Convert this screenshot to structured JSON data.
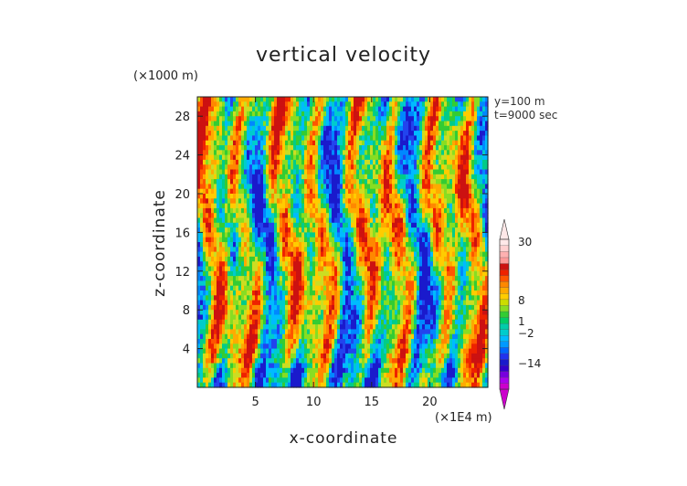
{
  "chart_data": {
    "type": "heatmap",
    "title": "vertical velocity",
    "xlabel": "x-coordinate",
    "ylabel": "z-coordinate",
    "x_unit": "(×1E4 m)",
    "y_unit": "(×1000 m)",
    "info": [
      "y=100 m",
      "t=9000 sec"
    ],
    "xlim": [
      0,
      25
    ],
    "ylim": [
      0,
      30
    ],
    "x_ticks": [
      5,
      10,
      15,
      20
    ],
    "y_ticks": [
      4,
      8,
      12,
      16,
      20,
      24,
      28
    ],
    "colorbar": {
      "labels": [
        "30",
        "8",
        "1",
        "−2",
        "−14"
      ],
      "colors": [
        "#cc00cc",
        "#aa00ee",
        "#7700dd",
        "#3300cc",
        "#1a1acc",
        "#2233ee",
        "#0066ff",
        "#0099ff",
        "#00bbff",
        "#00cccc",
        "#00ccaa",
        "#00cc66",
        "#33cc33",
        "#88dd22",
        "#ccdd00",
        "#ffcc00",
        "#ffaa00",
        "#ff8800",
        "#ff5500",
        "#ee2200",
        "#cc1111",
        "#ff9999",
        "#ffb0b0",
        "#ffd0d0",
        "#ffe8e8"
      ]
    }
  }
}
